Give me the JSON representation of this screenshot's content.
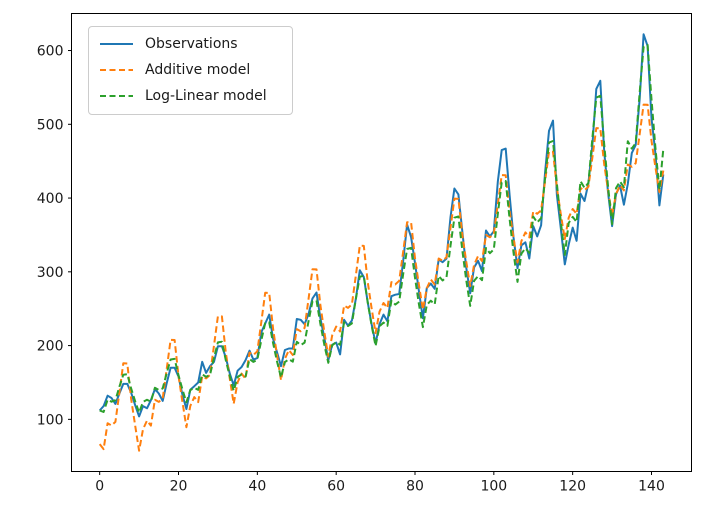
{
  "chart_data": {
    "type": "line",
    "title": "",
    "xlabel": "",
    "ylabel": "",
    "x_ticks": [
      0,
      20,
      40,
      60,
      80,
      100,
      120,
      140
    ],
    "y_ticks": [
      100,
      200,
      300,
      400,
      500,
      600
    ],
    "xlim": [
      -7.15,
      150.15
    ],
    "ylim": [
      29.3,
      650.2
    ],
    "grid": false,
    "x": {
      "start": 0,
      "step": 1,
      "count": 144
    },
    "legend": {
      "position": "upper-left",
      "entries": [
        "Observations",
        "Additive model",
        "Log-Linear model"
      ]
    },
    "style": {
      "background": "#ffffff",
      "spine_color": "#000000",
      "text_color": "#1a1a1a",
      "legend_border": "#cccccc",
      "legend_background": "rgba(255,255,255,0.85)"
    },
    "series": [
      {
        "name": "Observations",
        "color": "#1f77b4",
        "style": "solid",
        "linewidth": 2,
        "values": [
          112,
          118,
          132,
          129,
          121,
          135,
          148,
          148,
          136,
          119,
          104,
          118,
          115,
          126,
          141,
          135,
          125,
          149,
          170,
          170,
          158,
          133,
          114,
          140,
          145,
          150,
          178,
          163,
          172,
          178,
          199,
          199,
          184,
          162,
          146,
          166,
          171,
          180,
          193,
          181,
          183,
          218,
          230,
          242,
          209,
          191,
          172,
          194,
          196,
          196,
          236,
          235,
          229,
          243,
          264,
          272,
          237,
          211,
          180,
          201,
          204,
          188,
          235,
          227,
          234,
          264,
          302,
          293,
          259,
          229,
          203,
          229,
          242,
          233,
          267,
          269,
          270,
          315,
          364,
          347,
          312,
          274,
          237,
          278,
          284,
          277,
          317,
          313,
          318,
          374,
          413,
          405,
          355,
          306,
          271,
          306,
          315,
          301,
          356,
          348,
          355,
          422,
          465,
          467,
          404,
          347,
          305,
          336,
          340,
          318,
          362,
          348,
          363,
          435,
          491,
          505,
          404,
          359,
          310,
          337,
          360,
          342,
          406,
          396,
          420,
          472,
          548,
          559,
          463,
          407,
          362,
          405,
          417,
          391,
          419,
          461,
          472,
          535,
          622,
          606,
          508,
          461,
          390,
          432
        ]
      },
      {
        "name": "Additive model",
        "color": "#ff7f0e",
        "style": "dashed",
        "linewidth": 2,
        "values": [
          66.4,
          59.6,
          94.8,
          91.7,
          96.5,
          136.3,
          176.0,
          175.7,
          127.0,
          91.2,
          57.5,
          86.5,
          98.3,
          91.5,
          126.7,
          123.6,
          128.3,
          168.2,
          207.8,
          207.6,
          158.9,
          123.1,
          89.3,
          118.3,
          130.2,
          123.4,
          158.6,
          155.5,
          160.2,
          200.1,
          239.7,
          239.5,
          190.8,
          155.0,
          121.2,
          150.2,
          162.0,
          155.3,
          190.5,
          187.4,
          192.1,
          231.9,
          271.6,
          271.4,
          222.7,
          186.9,
          153.1,
          182.1,
          193.9,
          187.2,
          222.3,
          219.3,
          224.0,
          263.8,
          303.5,
          303.3,
          254.6,
          218.8,
          185.0,
          214.0,
          225.8,
          219.1,
          254.2,
          251.1,
          255.9,
          295.7,
          335.4,
          335.1,
          286.5,
          250.6,
          216.9,
          245.9,
          257.7,
          250.9,
          286.1,
          283.0,
          287.8,
          327.6,
          367.3,
          367.0,
          318.4,
          282.5,
          248.8,
          277.8,
          289.6,
          282.8,
          318.0,
          314.9,
          319.7,
          359.5,
          399.2,
          398.9,
          350.2,
          314.4,
          280.7,
          309.7,
          321.5,
          314.7,
          349.9,
          346.8,
          351.6,
          391.4,
          431.1,
          430.8,
          382.1,
          346.3,
          312.6,
          341.6,
          353.4,
          346.6,
          381.8,
          378.7,
          383.4,
          423.3,
          463.0,
          462.7,
          414.0,
          378.2,
          344.4,
          373.4,
          385.2,
          378.5,
          413.7,
          410.6,
          415.3,
          455.2,
          494.8,
          494.6,
          445.9,
          410.1,
          376.3,
          405.3,
          417.1,
          410.4,
          445.5,
          442.5,
          447.2,
          487.0,
          526.7,
          526.5,
          477.8,
          442.0,
          408.2,
          437.2
        ]
      },
      {
        "name": "Log-Linear model",
        "color": "#2ca02c",
        "style": "dashed",
        "linewidth": 2,
        "values": [
          112.1,
          110.0,
          126.6,
          123.9,
          125.9,
          144.2,
          160.5,
          161.2,
          141.6,
          124.3,
          109.1,
          123.7,
          126.5,
          124.1,
          142.8,
          139.8,
          142.0,
          162.7,
          181.1,
          181.9,
          159.8,
          140.2,
          123.1,
          139.6,
          142.7,
          140.0,
          161.1,
          157.7,
          160.2,
          183.5,
          204.3,
          205.2,
          180.2,
          158.2,
          138.9,
          157.4,
          161.0,
          158.0,
          181.8,
          177.9,
          180.8,
          207.1,
          230.5,
          231.5,
          203.3,
          178.5,
          156.7,
          177.6,
          181.6,
          178.2,
          205.1,
          200.7,
          204.0,
          233.6,
          260.0,
          261.1,
          229.4,
          201.4,
          176.7,
          200.4,
          204.9,
          201.1,
          231.4,
          226.5,
          230.1,
          263.6,
          293.4,
          294.6,
          258.8,
          227.2,
          199.4,
          226.1,
          231.2,
          226.8,
          261.0,
          255.5,
          259.6,
          297.3,
          331.0,
          332.4,
          292.0,
          256.3,
          225.0,
          255.1,
          260.8,
          255.9,
          294.5,
          288.2,
          292.9,
          335.4,
          373.4,
          375.0,
          329.4,
          289.2,
          253.8,
          287.8,
          294.2,
          288.7,
          332.3,
          325.2,
          330.4,
          378.5,
          421.2,
          423.1,
          371.6,
          326.2,
          286.3,
          324.7,
          331.9,
          325.7,
          374.9,
          366.9,
          372.8,
          427.0,
          475.2,
          477.3,
          419.3,
          368.1,
          323.0,
          366.3,
          374.5,
          367.5,
          422.9,
          413.9,
          420.6,
          481.7,
          536.2,
          538.6,
          473.0,
          415.3,
          364.5,
          413.3,
          422.5,
          414.6,
          477.1,
          467.0,
          474.5,
          543.5,
          604.9,
          607.6,
          533.7,
          468.5,
          411.2,
          466.2
        ]
      }
    ]
  }
}
